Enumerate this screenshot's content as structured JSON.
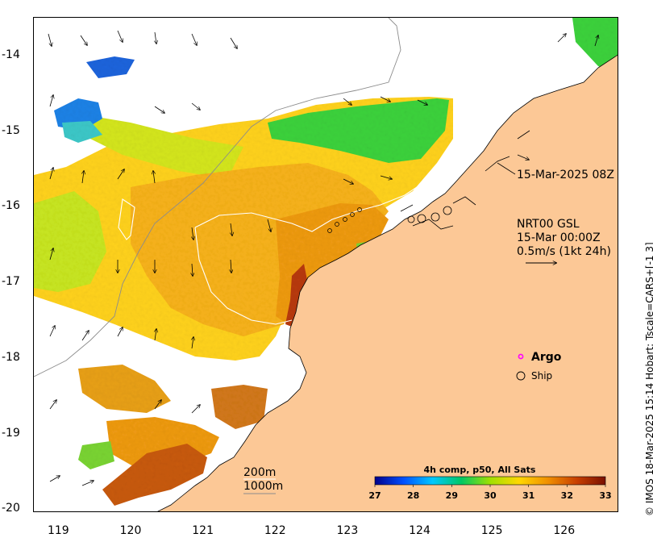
{
  "map": {
    "timestamp_label": "15-Mar-2025 08Z",
    "current_info": {
      "line1": "NRT00 GSL",
      "line2": "15-Mar 00:00Z",
      "line3": "0.5m/s (1kt 24h)"
    },
    "legend": {
      "argo_label": "Argo",
      "ship_label": "Ship",
      "argo_color": "#ff00ff"
    },
    "isobaths": [
      "200m",
      "1000m"
    ],
    "land_color": "#fcc896",
    "credit": "© IMOS 18-Mar-2025 15:14 Hobart; Tscale=CARS+[-1 3]"
  },
  "axes": {
    "x_ticks": [
      "119",
      "120",
      "121",
      "122",
      "123",
      "124",
      "125",
      "126"
    ],
    "y_ticks": [
      "-14",
      "-15",
      "-16",
      "-17",
      "-18",
      "-19",
      "-20"
    ],
    "lon_range": [
      118.65,
      126.75
    ],
    "lat_range": [
      -20.05,
      -13.5
    ]
  },
  "colorbar": {
    "title": "4h comp, p50, All Sats",
    "ticks": [
      "27",
      "28",
      "29",
      "30",
      "31",
      "32",
      "33"
    ],
    "range": [
      27,
      33
    ],
    "colors": [
      "#00008b",
      "#0050ff",
      "#00c8ff",
      "#00c864",
      "#a0e000",
      "#ffd700",
      "#f09000",
      "#c84000",
      "#7a1000"
    ]
  }
}
